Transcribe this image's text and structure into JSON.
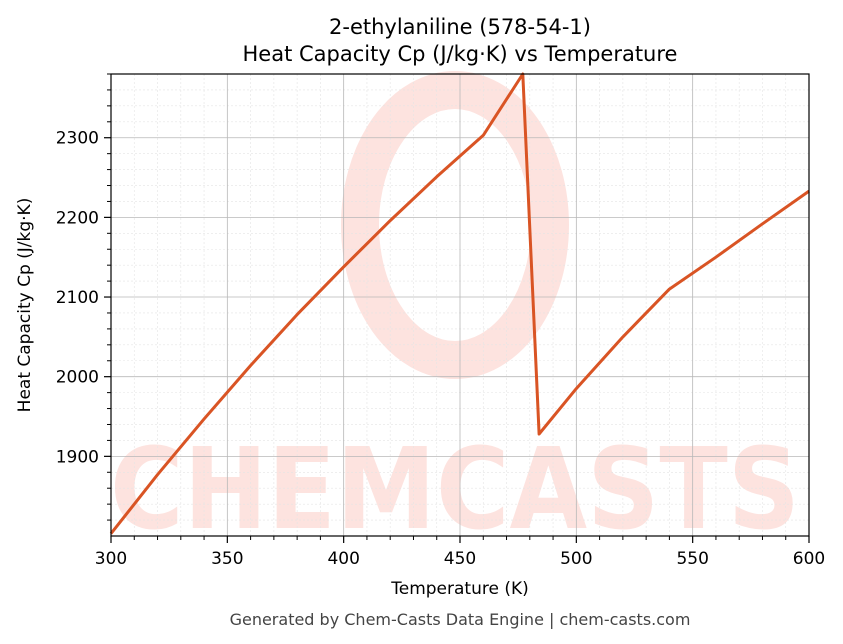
{
  "chart_data": {
    "type": "line",
    "title": "2-ethylaniline (578-54-1)",
    "subtitle": "Heat Capacity Cp (J/kg·K) vs Temperature",
    "xlabel": "Temperature (K)",
    "ylabel": "Heat Capacity Cp (J/kg·K)",
    "xlim": [
      300,
      600
    ],
    "ylim": [
      1800,
      2380
    ],
    "xticks": [
      300,
      350,
      400,
      450,
      500,
      550,
      600
    ],
    "yticks": [
      1900,
      2000,
      2100,
      2200,
      2300
    ],
    "grid": true,
    "line_color": "#d95424",
    "series": [
      {
        "x": [
          300,
          320,
          340,
          360,
          380,
          400,
          420,
          440,
          460,
          477,
          484,
          500,
          520,
          540,
          560,
          580,
          600
        ],
        "values": [
          1803,
          1877,
          1947,
          2014,
          2078,
          2138,
          2196,
          2251,
          2303,
          2380,
          1928,
          1985,
          2050,
          2110,
          2150,
          2192,
          2233
        ]
      }
    ]
  },
  "watermark": {
    "text": "CHEMCASTS",
    "color": "#fde3df"
  },
  "footer": "Generated by Chem-Casts Data Engine | chem-casts.com"
}
